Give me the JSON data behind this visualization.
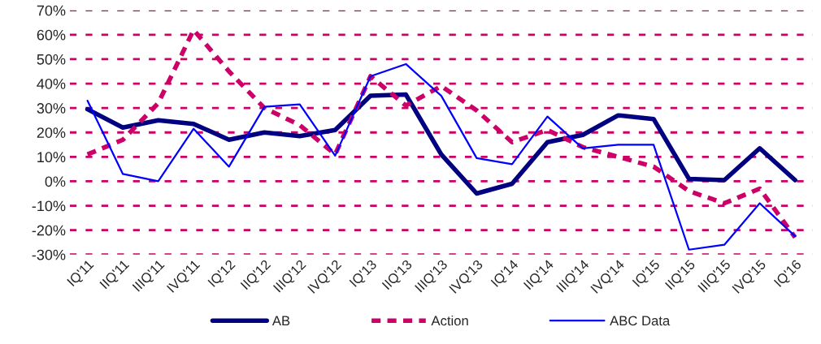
{
  "chart_data": {
    "type": "line",
    "categories": [
      "IQ'11",
      "IIQ'11",
      "IIIQ'11",
      "IVQ'11",
      "IQ'12",
      "IIQ'12",
      "IIIQ'12",
      "IVQ'12",
      "IQ'13",
      "IIQ'13",
      "IIIQ'13",
      "IVQ'13",
      "IQ'14",
      "IIQ'14",
      "IIIQ'14",
      "IVQ'14",
      "IQ'15",
      "IIQ'15",
      "IIIQ'15",
      "IVQ'15",
      "IQ'16"
    ],
    "series": [
      {
        "name": "AB",
        "color": "#000080",
        "line_style": "solid",
        "values": [
          29.5,
          22,
          25,
          23.5,
          17,
          20,
          18.5,
          21,
          35,
          35.5,
          11,
          -5,
          -1,
          16,
          19,
          27,
          25.5,
          1,
          0.5,
          13.5,
          0.5
        ]
      },
      {
        "name": "Action",
        "color": "#cc0066",
        "line_style": "dashed",
        "values": [
          11,
          17,
          32,
          62,
          45,
          30,
          23,
          11,
          43,
          31,
          39,
          29,
          16,
          21,
          14,
          10,
          6,
          -4,
          -9,
          -3,
          -23
        ]
      },
      {
        "name": "ABC Data",
        "color": "#0000ff",
        "line_style": "solid",
        "values": [
          33,
          3,
          0,
          21.5,
          6,
          30.5,
          31.5,
          10.5,
          43,
          48,
          35,
          9.5,
          7,
          26.5,
          13.5,
          15,
          15,
          -28,
          -26,
          -9,
          -22.5
        ]
      }
    ],
    "ylim": [
      -30,
      70
    ],
    "yticks": [
      {
        "value": -30,
        "label": "-30%"
      },
      {
        "value": -20,
        "label": "-20%"
      },
      {
        "value": -10,
        "label": "-10%"
      },
      {
        "value": 0,
        "label": "0%"
      },
      {
        "value": 10,
        "label": "10%"
      },
      {
        "value": 20,
        "label": "20%"
      },
      {
        "value": 30,
        "label": "30%"
      },
      {
        "value": 40,
        "label": "40%"
      },
      {
        "value": 50,
        "label": "50%"
      },
      {
        "value": 60,
        "label": "60%"
      },
      {
        "value": 70,
        "label": "70%"
      }
    ],
    "grid": "y",
    "legend": "bottom",
    "marker": "none"
  }
}
